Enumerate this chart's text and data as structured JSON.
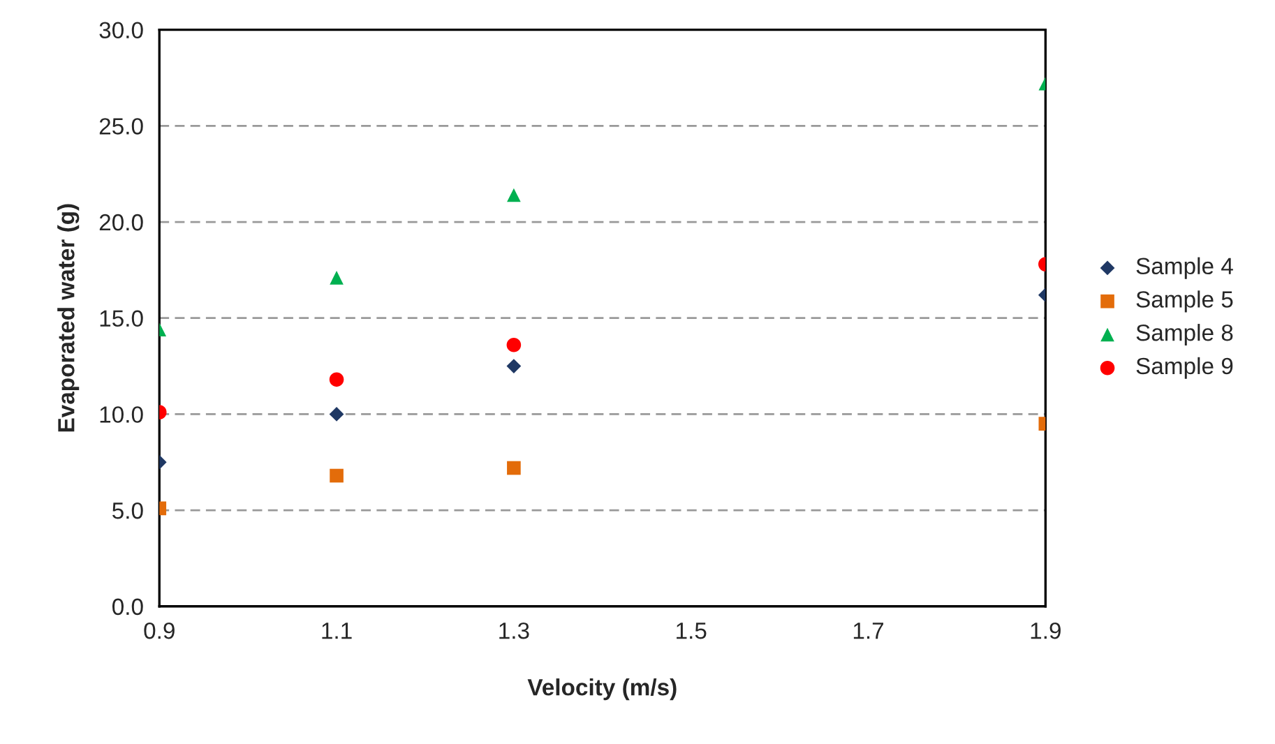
{
  "chart_data": {
    "type": "scatter",
    "xlabel": "Velocity (m/s)",
    "ylabel": "Evaporated water (g)",
    "x": [
      0.9,
      1.1,
      1.3,
      1.9
    ],
    "series": [
      {
        "name": "Sample 4",
        "color": "#1f3864",
        "marker": "diamond",
        "values": [
          7.5,
          10.0,
          12.5,
          16.2
        ]
      },
      {
        "name": "Sample 5",
        "color": "#e36c0a",
        "marker": "square",
        "values": [
          5.1,
          6.8,
          7.2,
          9.5
        ]
      },
      {
        "name": "Sample 8",
        "color": "#00b050",
        "marker": "triangle",
        "values": [
          14.4,
          17.1,
          21.4,
          27.2
        ]
      },
      {
        "name": "Sample 9",
        "color": "#ff0000",
        "marker": "circle",
        "values": [
          10.1,
          11.8,
          13.6,
          17.8
        ]
      }
    ],
    "xlim": [
      0.9,
      1.9
    ],
    "xticks": [
      0.9,
      1.1,
      1.3,
      1.5,
      1.7,
      1.9
    ],
    "ylim": [
      0,
      30
    ],
    "yticks": [
      {
        "value": 0,
        "label": "0.0"
      },
      {
        "value": 5,
        "label": "5.0"
      },
      {
        "value": 10,
        "label": "10.0"
      },
      {
        "value": 15,
        "label": "15.0"
      },
      {
        "value": 20,
        "label": "20.0"
      },
      {
        "value": 25,
        "label": "25.0"
      },
      {
        "value": 30,
        "label": "30.0"
      }
    ],
    "grid": "y",
    "legend": "right"
  }
}
